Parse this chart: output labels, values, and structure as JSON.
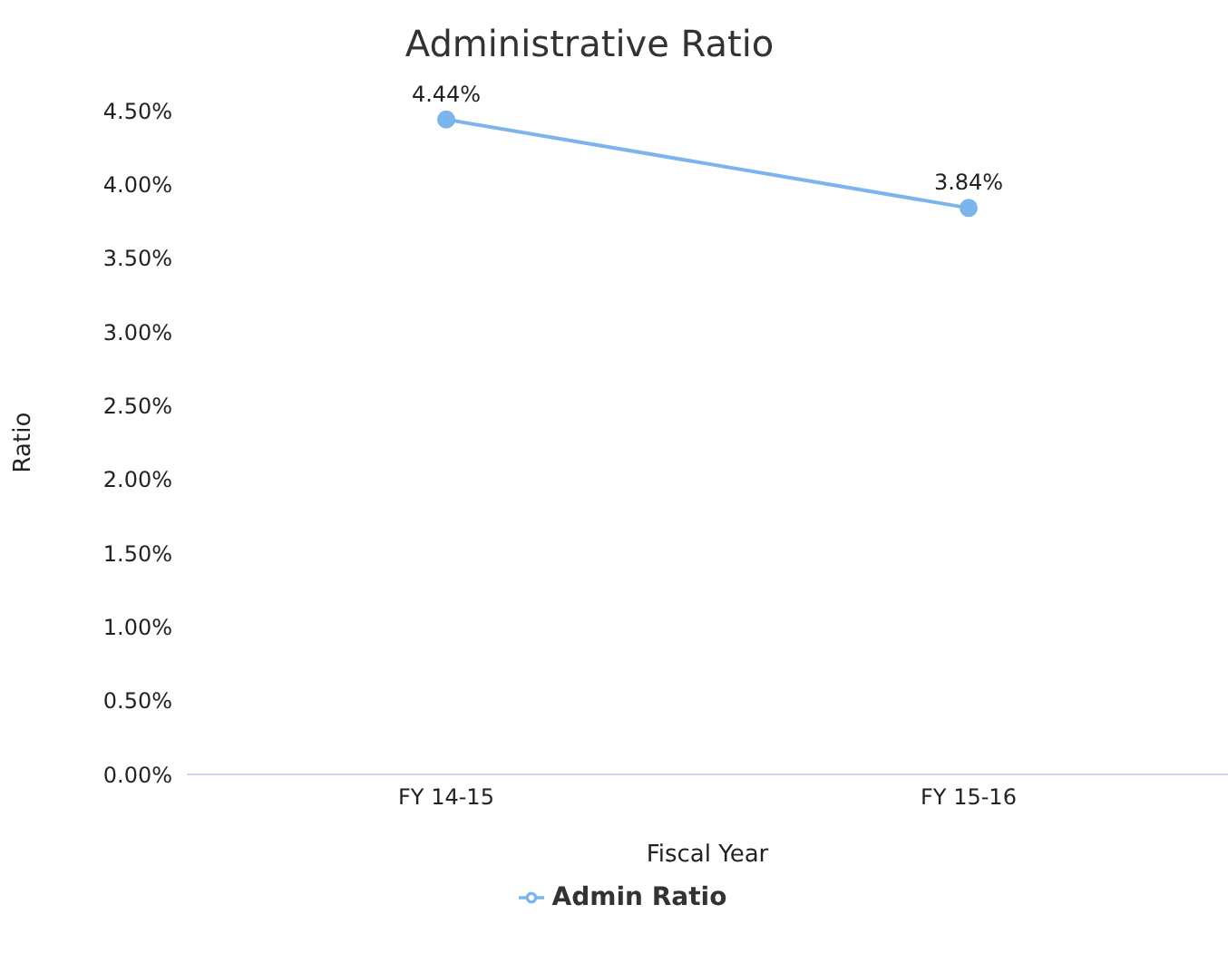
{
  "chart_data": {
    "type": "line",
    "title": "Administrative Ratio",
    "xlabel": "Fiscal Year",
    "ylabel": "Ratio",
    "categories": [
      "FY 14-15",
      "FY 15-16"
    ],
    "series": [
      {
        "name": "Admin Ratio",
        "color": "#7cb5ec",
        "values": [
          4.44,
          3.84
        ],
        "value_labels": [
          "4.44%",
          "3.84%"
        ]
      }
    ],
    "ylim": [
      0,
      4.5
    ],
    "yticks": [
      {
        "value": 0,
        "label": "0.00%"
      },
      {
        "value": 0.5,
        "label": "0.50%"
      },
      {
        "value": 1,
        "label": "1.00%"
      },
      {
        "value": 1.5,
        "label": "1.50%"
      },
      {
        "value": 2,
        "label": "2.00%"
      },
      {
        "value": 2.5,
        "label": "2.50%"
      },
      {
        "value": 3,
        "label": "3.00%"
      },
      {
        "value": 3.5,
        "label": "3.50%"
      },
      {
        "value": 4,
        "label": "4.00%"
      },
      {
        "value": 4.5,
        "label": "4.50%"
      }
    ],
    "grid": false,
    "legend": "bottom",
    "marker": "circle",
    "line_style": "solid"
  }
}
